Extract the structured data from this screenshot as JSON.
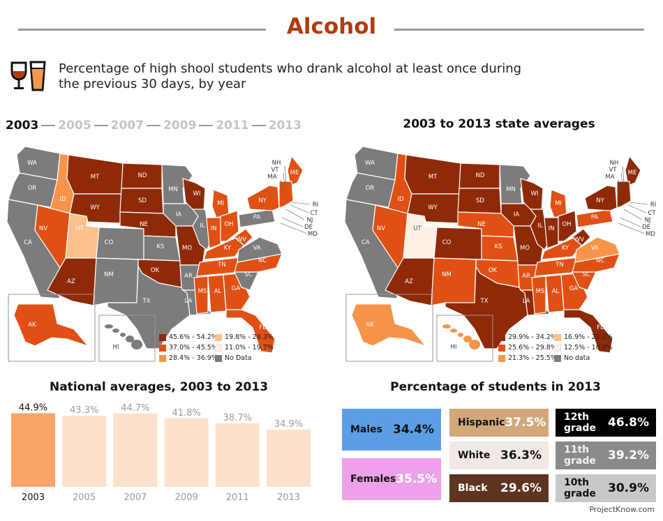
{
  "header": {
    "title": "Alcohol",
    "subtitle_line1": "Percentage of high shool students who drank alcohol at least once during",
    "subtitle_line2": "the previous 30 days, by year"
  },
  "year_selector": [
    "2003",
    "2005",
    "2007",
    "2009",
    "2011",
    "2013"
  ],
  "colors": {
    "title": "#b13a10",
    "c1": "#8f2a08",
    "c2": "#e05014",
    "c3": "#f7944a",
    "c4": "#fcc08c",
    "c5": "#fff0e4",
    "nodata": "#7c7c7c",
    "bar_active": "#f9a56a",
    "bar_inactive": "#fde0cc"
  },
  "map_2003": {
    "year": "2003",
    "legend": [
      "45.6% - 54.2%",
      "37.0% - 45.5%",
      "28.4% - 36.9%",
      "19.8% - 28.3%",
      "11.0% - 19.7%",
      "No Data"
    ]
  },
  "map_avg": {
    "title": "2003 to 2013 state averages",
    "legend": [
      "29.9% - 34.2%",
      "25.6% - 29.8%",
      "21.3% - 25.5%",
      "16.9% - 21.2%",
      "12.5% - 16.8%",
      "No data"
    ]
  },
  "state_labels": [
    "WA",
    "OR",
    "CA",
    "ID",
    "NV",
    "UT",
    "AZ",
    "MT",
    "WY",
    "CO",
    "NM",
    "ND",
    "SD",
    "NE",
    "KS",
    "OK",
    "TX",
    "MN",
    "IA",
    "MO",
    "AR",
    "LA",
    "WI",
    "IL",
    "MI",
    "IN",
    "OH",
    "KY",
    "TN",
    "MS",
    "AL",
    "GA",
    "FL",
    "SC",
    "NC",
    "VA",
    "WV",
    "PA",
    "NY",
    "ME",
    "AK",
    "HI"
  ],
  "northeast_labels": [
    "NH",
    "VT",
    "MA",
    "RI",
    "CT",
    "NJ",
    "DE",
    "MD"
  ],
  "chart_data": [
    {
      "type": "bar",
      "title": "National averages, 2003 to 2013",
      "categories": [
        "2003",
        "2005",
        "2007",
        "2009",
        "2011",
        "2013"
      ],
      "values": [
        44.9,
        43.3,
        44.7,
        41.8,
        38.7,
        34.9
      ],
      "data_labels": [
        "44.9%",
        "43.3%",
        "44.7%",
        "41.8%",
        "38.7%",
        "34.9%"
      ],
      "highlight": "2003",
      "xlabel": "",
      "ylabel": ""
    },
    {
      "type": "table",
      "title": "Percentage of students in 2013",
      "categories": [
        "Males",
        "Females",
        "Hispanic",
        "White",
        "Black",
        "12th grade",
        "11th grade",
        "10th grade"
      ],
      "values": [
        34.4,
        35.5,
        37.5,
        36.3,
        29.6,
        46.8,
        39.2,
        30.9
      ],
      "data_labels": [
        "34.4%",
        "35.5%",
        "37.5%",
        "36.3%",
        "29.6%",
        "46.8%",
        "39.2%",
        "30.9%"
      ],
      "tile_colors": [
        "#5b9ee6",
        "#eea0ea",
        "#d2a77a",
        "#f0e8e4",
        "#5c3420",
        "#000000",
        "#8a8a8a",
        "#c8c8c8"
      ]
    }
  ],
  "footer": {
    "credit": "ProjectKnow.com"
  }
}
